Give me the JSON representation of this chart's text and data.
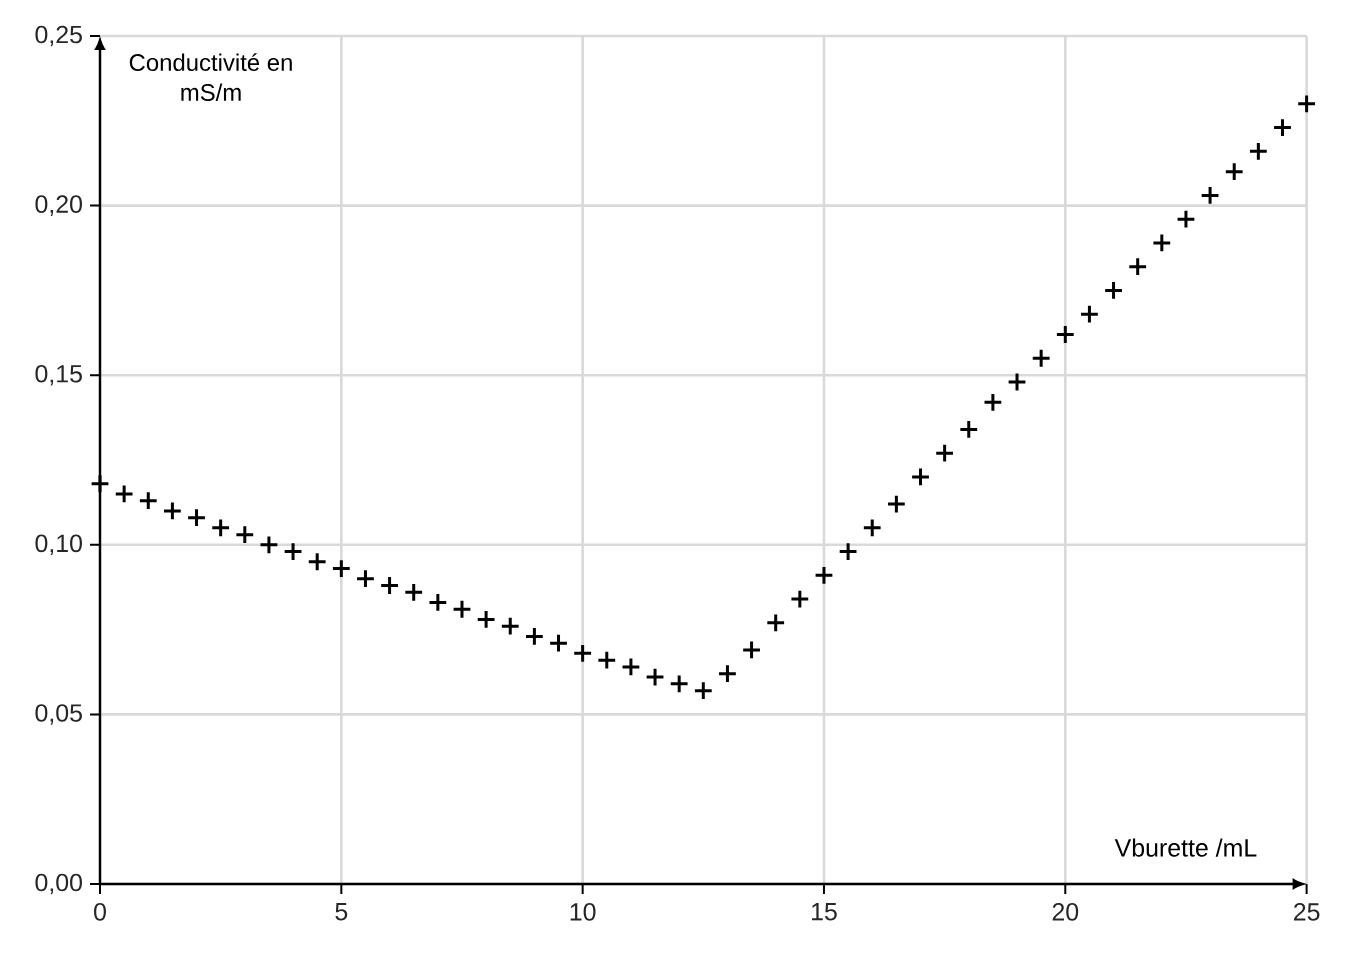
{
  "chart_data": {
    "type": "scatter",
    "xlabel": "Vburette /mL",
    "ylabel": "Conductivité en mS/m",
    "x": [
      0,
      0.5,
      1,
      1.5,
      2,
      2.5,
      3,
      3.5,
      4,
      4.5,
      5,
      5.5,
      6,
      6.5,
      7,
      7.5,
      8,
      8.5,
      9,
      9.5,
      10,
      10.5,
      11,
      11.5,
      12,
      12.5,
      13,
      13.5,
      14,
      14.5,
      15,
      15.5,
      16,
      16.5,
      17,
      17.5,
      18,
      18.5,
      19,
      19.5,
      20,
      20.5,
      21,
      21.5,
      22,
      22.5,
      23,
      23.5,
      24,
      24.5,
      25
    ],
    "values": [
      0.118,
      0.115,
      0.113,
      0.11,
      0.108,
      0.105,
      0.103,
      0.1,
      0.098,
      0.095,
      0.093,
      0.09,
      0.088,
      0.086,
      0.083,
      0.081,
      0.078,
      0.076,
      0.073,
      0.071,
      0.068,
      0.066,
      0.064,
      0.061,
      0.059,
      0.057,
      0.062,
      0.069,
      0.077,
      0.084,
      0.091,
      0.098,
      0.105,
      0.112,
      0.12,
      0.127,
      0.134,
      0.142,
      0.148,
      0.155,
      0.162,
      0.168,
      0.175,
      0.182,
      0.189,
      0.196,
      0.203,
      0.21,
      0.216,
      0.223,
      0.23
    ],
    "color": "#000000",
    "marker": "cross",
    "xlim": [
      0,
      25
    ],
    "ylim": [
      0,
      0.25
    ],
    "xticks": [
      0,
      5,
      10,
      15,
      20,
      25
    ],
    "yticks": [
      {
        "value": 0,
        "label": "0,00"
      },
      {
        "value": 0.05,
        "label": "0,05"
      },
      {
        "value": 0.1,
        "label": "0,10"
      },
      {
        "value": 0.15,
        "label": "0,15"
      },
      {
        "value": 0.2,
        "label": "0,20"
      },
      {
        "value": 0.25,
        "label": "0,25"
      }
    ],
    "grid": true
  }
}
